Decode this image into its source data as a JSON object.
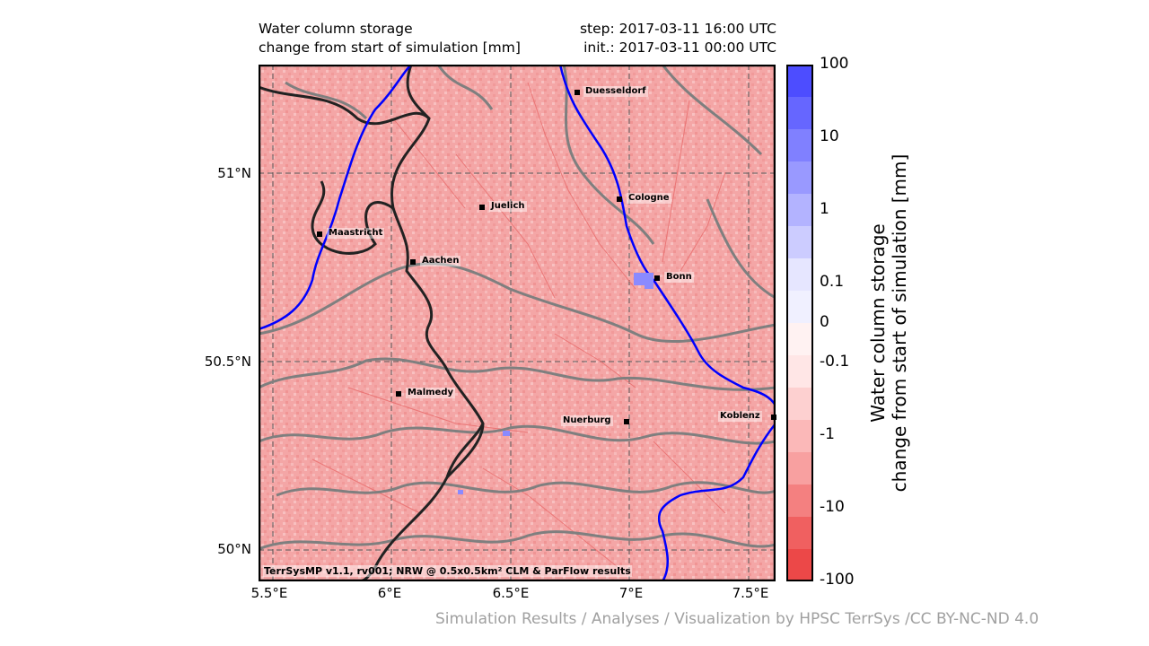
{
  "header": {
    "title_line1": "Water column storage",
    "title_line2": "change from start of simulation [mm]",
    "step": "step: 2017-03-11 16:00 UTC",
    "init": "init.: 2017-03-11 00:00 UTC"
  },
  "map": {
    "lat_ticks": [
      "51°N",
      "50.5°N",
      "50°N"
    ],
    "lon_ticks": [
      "5.5°E",
      "6°E",
      "6.5°E",
      "7°E",
      "7.5°E"
    ],
    "cities": [
      {
        "name": "Duesseldorf",
        "label_side": "right"
      },
      {
        "name": "Cologne",
        "label_side": "right"
      },
      {
        "name": "Juelich",
        "label_side": "right"
      },
      {
        "name": "Maastricht",
        "label_side": "right"
      },
      {
        "name": "Aachen",
        "label_side": "right"
      },
      {
        "name": "Bonn",
        "label_side": "right"
      },
      {
        "name": "Malmedy",
        "label_side": "right"
      },
      {
        "name": "Nuerburg",
        "label_side": "left"
      },
      {
        "name": "Koblenz",
        "label_side": "left"
      }
    ],
    "credit": "TerrSysMP v1.1, rv001; NRW @ 0.5x0.5km² CLM & ParFlow results",
    "colors": {
      "land": "#f4a6a6",
      "river": "#0000ff",
      "border": "#222222",
      "contour": "#808080"
    }
  },
  "colorbar": {
    "title_line1": "Water column storage",
    "title_line2": "change from start of simulation [mm]",
    "labels": [
      "100",
      "10",
      "1",
      "0.1",
      "0",
      "-0.1",
      "-1",
      "-10",
      "-100"
    ],
    "colors": [
      "#4d4dff",
      "#6666ff",
      "#8080ff",
      "#9999ff",
      "#b3b3ff",
      "#ccccff",
      "#e6e6ff",
      "#f0f0ff",
      "#fff2f2",
      "#ffe6e6",
      "#fdd0d0",
      "#fbb8b8",
      "#f8a0a0",
      "#f48080",
      "#f06060",
      "#ec4848"
    ]
  },
  "footer": "Simulation Results / Analyses / Visualization by HPSC TerrSys /CC BY-NC-ND 4.0"
}
